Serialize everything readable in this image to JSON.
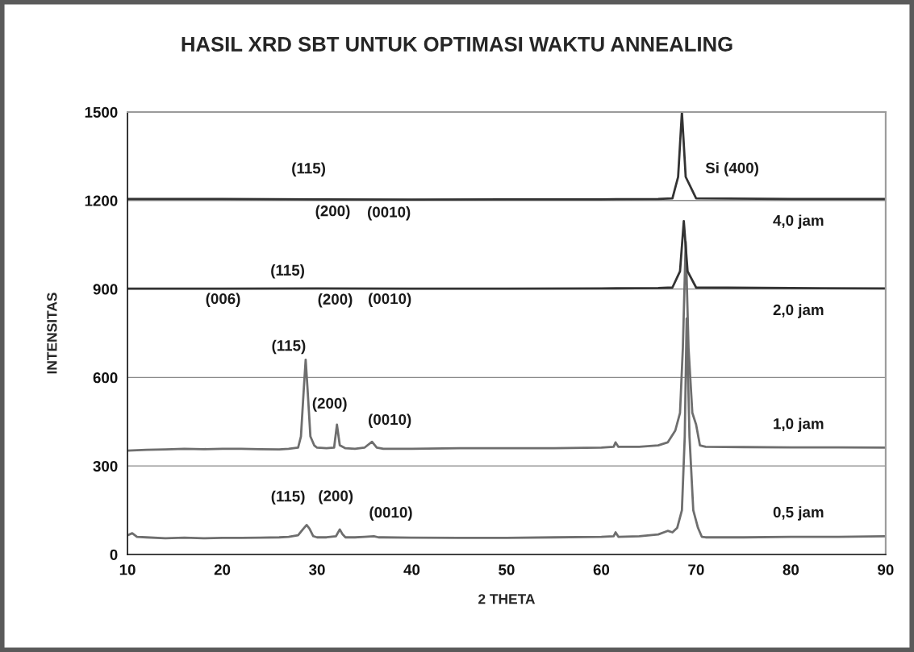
{
  "chart_data": {
    "type": "line",
    "title": "HASIL XRD SBT UNTUK OPTIMASI WAKTU ANNEALING",
    "xlabel": "2 THETA",
    "ylabel": "INTENSITAS",
    "xlim": [
      10,
      90
    ],
    "xticks": [
      10,
      20,
      30,
      40,
      50,
      60,
      70,
      80,
      90
    ],
    "ylim": [
      0,
      1500
    ],
    "yticks": [
      0,
      300,
      600,
      900,
      1200,
      1500
    ],
    "grid": "y",
    "marker": "none",
    "line_style": "solid",
    "series": [
      {
        "name": "0,5 jam",
        "color": "#6e6e6e",
        "x": [
          10,
          10.5,
          11,
          12,
          14,
          16,
          18,
          20,
          22,
          24,
          26,
          27,
          28,
          28.5,
          28.9,
          29.2,
          29.6,
          30,
          31,
          32,
          32.4,
          32.7,
          33,
          34,
          35,
          36,
          36.5,
          37,
          40,
          45,
          50,
          55,
          60,
          61.3,
          61.5,
          61.8,
          64,
          66,
          67,
          67.5,
          68,
          68.5,
          68.8,
          69.0,
          69.3,
          69.7,
          70.2,
          70.6,
          71,
          75,
          80,
          85,
          90
        ],
        "values": [
          65,
          72,
          60,
          58,
          55,
          57,
          55,
          56,
          56,
          57,
          58,
          60,
          65,
          85,
          100,
          88,
          62,
          58,
          58,
          62,
          85,
          68,
          58,
          58,
          60,
          62,
          58,
          58,
          57,
          56,
          56,
          58,
          60,
          62,
          75,
          60,
          62,
          68,
          80,
          75,
          90,
          150,
          400,
          800,
          400,
          150,
          90,
          60,
          58,
          58,
          60,
          60,
          62
        ]
      },
      {
        "name": "1,0 jam",
        "color": "#6e6e6e",
        "x": [
          10,
          12,
          14,
          16,
          18,
          20,
          22,
          24,
          26,
          27,
          28,
          28.3,
          28.6,
          28.8,
          29.0,
          29.3,
          29.7,
          30,
          31,
          31.8,
          32.1,
          32.4,
          33,
          34,
          35,
          35.8,
          36.3,
          37,
          40,
          45,
          50,
          55,
          60,
          61.3,
          61.5,
          61.8,
          64,
          66,
          67,
          67.8,
          68.3,
          68.6,
          68.9,
          69.2,
          69.6,
          70.0,
          70.4,
          71,
          75,
          80,
          85,
          90
        ],
        "values": [
          352,
          355,
          356,
          358,
          357,
          358,
          358,
          357,
          356,
          358,
          362,
          400,
          560,
          660,
          560,
          400,
          370,
          362,
          360,
          362,
          440,
          370,
          360,
          358,
          362,
          382,
          362,
          358,
          358,
          360,
          360,
          360,
          362,
          365,
          380,
          365,
          365,
          370,
          380,
          420,
          480,
          700,
          1060,
          700,
          480,
          440,
          370,
          365,
          364,
          363,
          363,
          362
        ]
      },
      {
        "name": "2,0 jam",
        "color": "#333333",
        "x": [
          10,
          20,
          30,
          40,
          50,
          60,
          66,
          67.5,
          68.3,
          68.7,
          69.1,
          70,
          80,
          90
        ],
        "values": [
          901,
          901,
          902,
          901,
          901,
          902,
          903,
          905,
          960,
          1130,
          960,
          905,
          903,
          902
        ]
      },
      {
        "name": "4,0 jam",
        "color": "#333333",
        "x": [
          10,
          20,
          30,
          40,
          50,
          60,
          66,
          67.5,
          68.1,
          68.5,
          68.9,
          70,
          80,
          90
        ],
        "values": [
          1205,
          1205,
          1204,
          1203,
          1204,
          1204,
          1205,
          1207,
          1280,
          1500,
          1280,
          1207,
          1205,
          1205
        ]
      }
    ],
    "annotations": [
      {
        "text": "(115)",
        "x": 28.6,
        "y": 1204
      },
      {
        "text": "(200)",
        "x": 32.0,
        "y": 1204
      },
      {
        "text": "(0010)",
        "x": 35.8,
        "y": 1203
      },
      "Si (400)",
      {
        "text": "(115)",
        "x": 28.6,
        "y": 902
      },
      {
        "text": "(200)",
        "x": 32.0,
        "y": 902
      },
      {
        "text": "(0010)",
        "x": 35.8,
        "y": 901
      },
      {
        "text": "(006)",
        "x": 20.0,
        "y": 901
      },
      {
        "text": "(115)",
        "x": 28.8,
        "y": 660
      },
      {
        "text": "(200)",
        "x": 32.1,
        "y": 440
      },
      {
        "text": "(0010)",
        "x": 35.8,
        "y": 382
      },
      {
        "text": "(115)",
        "x": 28.9,
        "y": 100
      },
      {
        "text": "(200)",
        "x": 32.4,
        "y": 85
      },
      {
        "text": "(0010)",
        "x": 36.0,
        "y": 62
      }
    ]
  }
}
